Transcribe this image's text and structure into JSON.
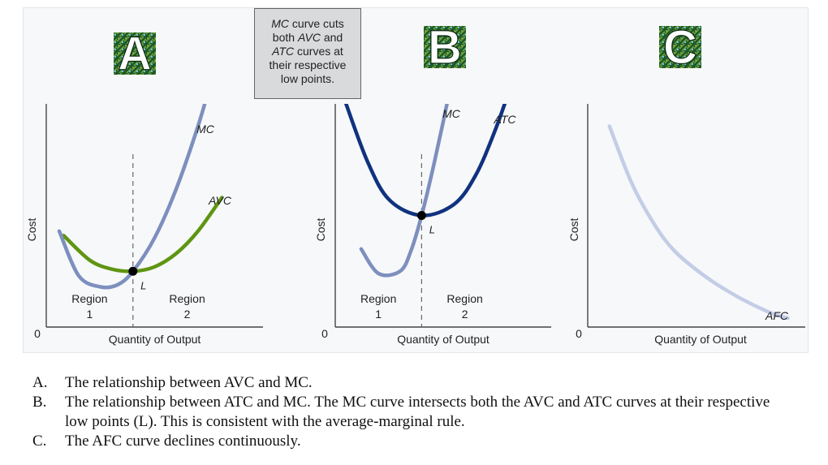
{
  "callout": {
    "line1_pre": "",
    "line1_em": "MC",
    "line1_post": " curve cuts",
    "line2_pre": "both ",
    "line2_em": "AVC",
    "line2_post": " and",
    "line3_em": "ATC",
    "line3_post": " curves at",
    "line4": "their respective",
    "line5": "low points."
  },
  "captions": [
    {
      "letter": "A.",
      "text": "The relationship between AVC and MC."
    },
    {
      "letter": "B.",
      "text": "The relationship between ATC and MC. The MC curve intersects both the AVC and ATC curves at their respective low points (L). This is consistent with the average-marginal rule."
    },
    {
      "letter": "C.",
      "text": "The AFC curve declines continuously."
    }
  ],
  "chart_data": [
    {
      "type": "line",
      "badge": "A",
      "title": "A",
      "xlabel": "Quantity of Output",
      "ylabel": "Cost",
      "origin_label": "0",
      "xlim": [
        0,
        10
      ],
      "ylim": [
        0,
        10
      ],
      "divider_x": 4,
      "point": {
        "label": "L",
        "x": 4,
        "y": 2.5
      },
      "regions": [
        {
          "line1": "Region",
          "line2": "1",
          "x": 2
        },
        {
          "line1": "Region",
          "line2": "2",
          "x": 6.5
        }
      ],
      "series": [
        {
          "name": "AVC",
          "color": "#5e9512",
          "x": [
            0.8,
            2,
            3,
            4,
            5,
            6,
            7,
            8.1
          ],
          "y": [
            4.1,
            3.0,
            2.6,
            2.5,
            2.7,
            3.3,
            4.3,
            5.8
          ]
        },
        {
          "name": "MC",
          "color": "#7d8fbe",
          "x": [
            0.6,
            1.5,
            2.5,
            3.3,
            4,
            5,
            6,
            7,
            7.6
          ],
          "y": [
            4.3,
            2.3,
            1.8,
            1.9,
            2.5,
            4.0,
            6.2,
            9.0,
            11.0
          ]
        }
      ]
    },
    {
      "type": "line",
      "badge": "B",
      "title": "B",
      "xlabel": "Quantity of Output",
      "ylabel": "Cost",
      "origin_label": "0",
      "xlim": [
        0,
        10
      ],
      "ylim": [
        0,
        10
      ],
      "divider_x": 4,
      "point": {
        "label": "L",
        "x": 4,
        "y": 5.0
      },
      "regions": [
        {
          "line1": "Region",
          "line2": "1",
          "x": 2
        },
        {
          "line1": "Region",
          "line2": "2",
          "x": 6
        }
      ],
      "series": [
        {
          "name": "MC",
          "color": "#7d8fbe",
          "x": [
            1.2,
            2,
            3,
            3.5,
            4,
            4.5,
            5,
            5.6
          ],
          "y": [
            3.5,
            2.4,
            2.5,
            3.4,
            5.0,
            7.0,
            9.2,
            12.0
          ]
        },
        {
          "name": "ATC",
          "color": "#10327f",
          "x": [
            0.5,
            1.5,
            2.5,
            4,
            5.5,
            6.5,
            7.4,
            8.2
          ],
          "y": [
            10.0,
            7.4,
            5.7,
            5.0,
            5.5,
            6.8,
            8.8,
            11.0
          ]
        }
      ]
    },
    {
      "type": "line",
      "badge": "C",
      "title": "C",
      "xlabel": "Quantity of Output",
      "ylabel": "Cost",
      "origin_label": "0",
      "xlim": [
        0,
        10
      ],
      "ylim": [
        0,
        10
      ],
      "series": [
        {
          "name": "AFC",
          "color": "#c3cde6",
          "x": [
            1,
            2,
            3,
            4,
            5.5,
            7,
            8.5,
            9.2
          ],
          "y": [
            9.0,
            6.5,
            4.7,
            3.4,
            2.2,
            1.3,
            0.6,
            0.4
          ]
        }
      ]
    }
  ]
}
